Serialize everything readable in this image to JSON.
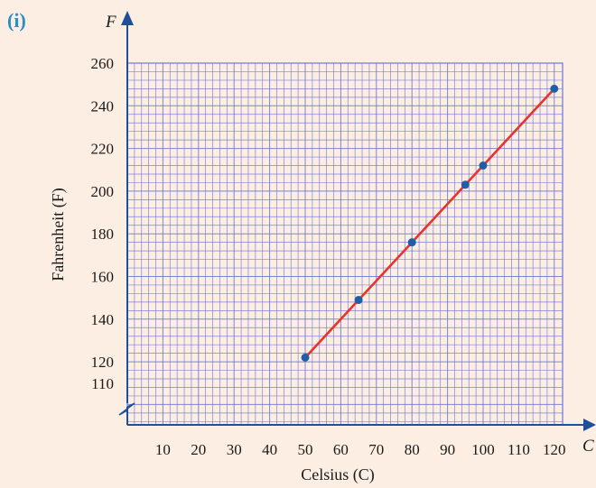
{
  "chart_data": {
    "type": "line",
    "panel_label": "(i)",
    "xlabel": "Celsius (C)",
    "ylabel": "Fahrenheit (F)",
    "x_axis_var": "C",
    "y_axis_var": "F",
    "x_ticks": [
      10,
      20,
      30,
      40,
      50,
      60,
      70,
      80,
      90,
      100,
      110,
      120
    ],
    "y_ticks": [
      110,
      120,
      140,
      160,
      180,
      200,
      220,
      240,
      260
    ],
    "xlim": [
      0,
      120
    ],
    "ylim": [
      110,
      260
    ],
    "y_axis_break": true,
    "grid": true,
    "series": [
      {
        "points": [
          {
            "x": 50,
            "y": 122
          },
          {
            "x": 65,
            "y": 149
          },
          {
            "x": 80,
            "y": 176
          },
          {
            "x": 95,
            "y": 203
          },
          {
            "x": 100,
            "y": 212
          },
          {
            "x": 120,
            "y": 248
          }
        ],
        "line_color": "#e8322b",
        "marker_color": "#1f5fa8"
      }
    ],
    "colors": {
      "background": "#fdeee3",
      "grid": "#6b73d6",
      "axis": "#1c4f9c",
      "panel_label": "#2a8fc9"
    }
  }
}
